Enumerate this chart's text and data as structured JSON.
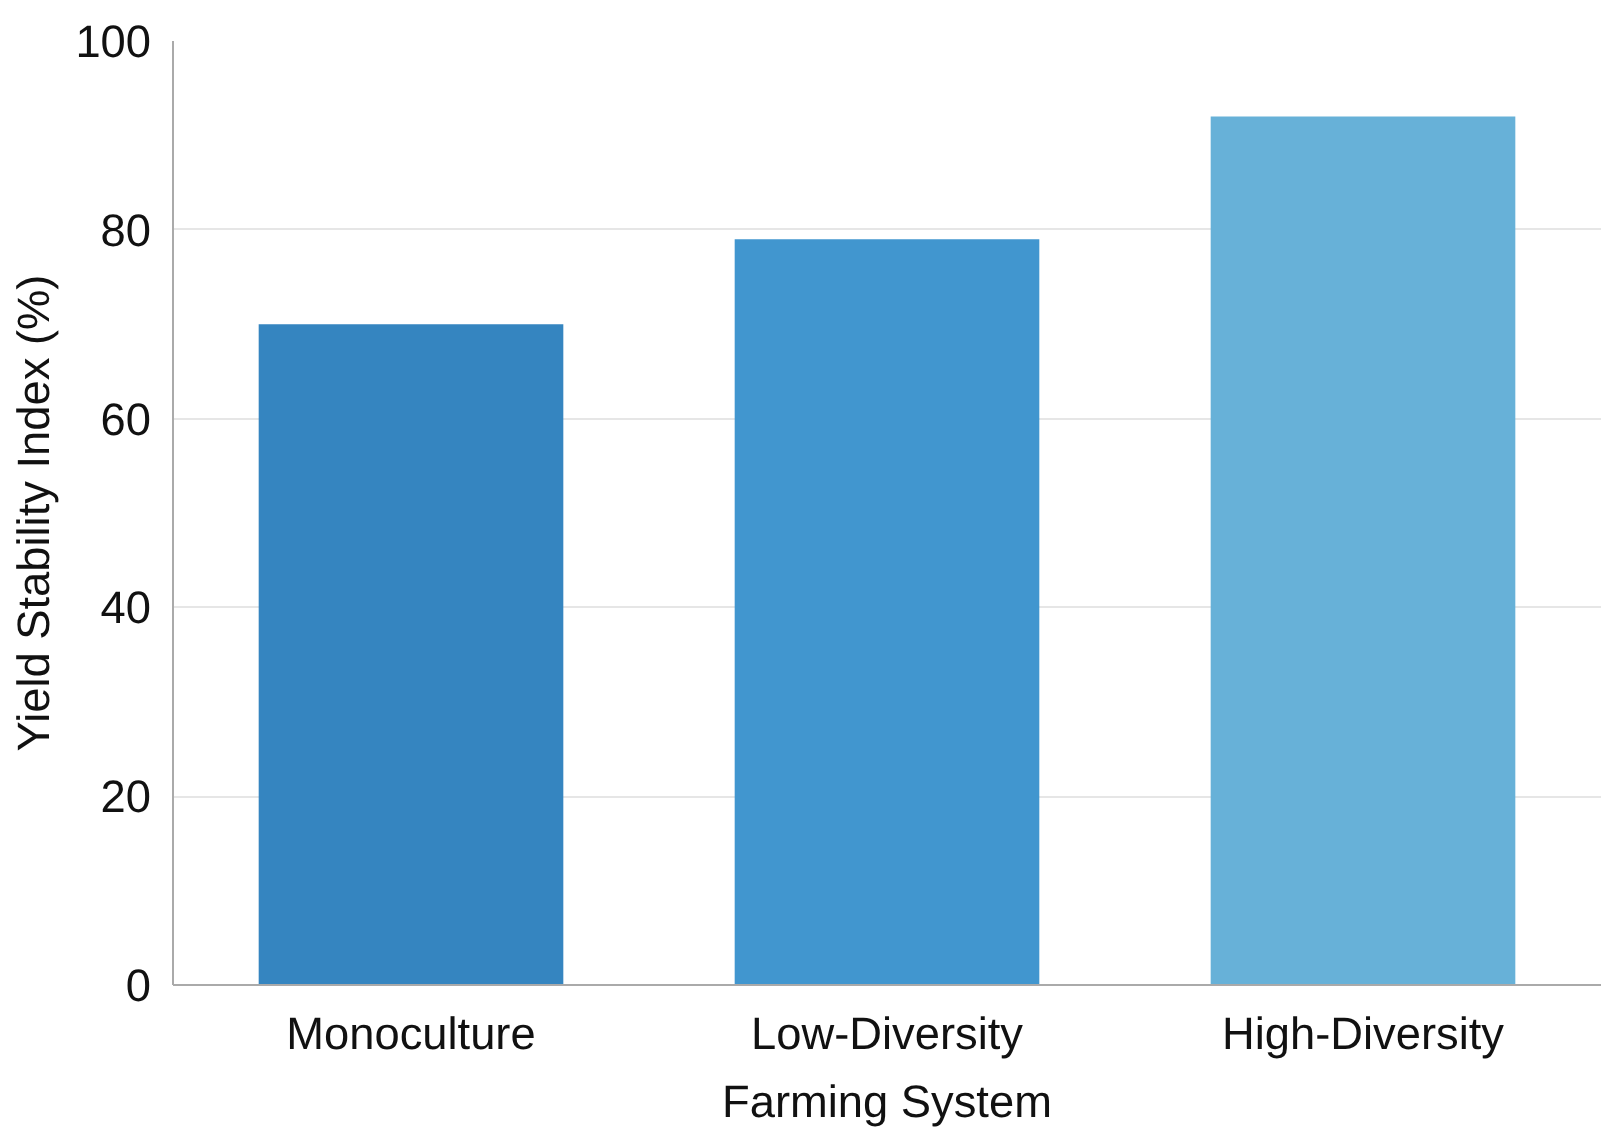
{
  "chart_data": {
    "type": "bar",
    "xlabel": "Farming System",
    "ylabel": "Yield Stability Index (%)",
    "categories": [
      "Monoculture",
      "Low-Diversity",
      "High-Diversity"
    ],
    "values": [
      70,
      79,
      92
    ],
    "colors": [
      "#3585c0",
      "#4196cf",
      "#67b1d8"
    ],
    "ylim": [
      0,
      100
    ],
    "yticks": [
      0,
      20,
      40,
      60,
      80,
      100
    ],
    "grid": "y"
  }
}
